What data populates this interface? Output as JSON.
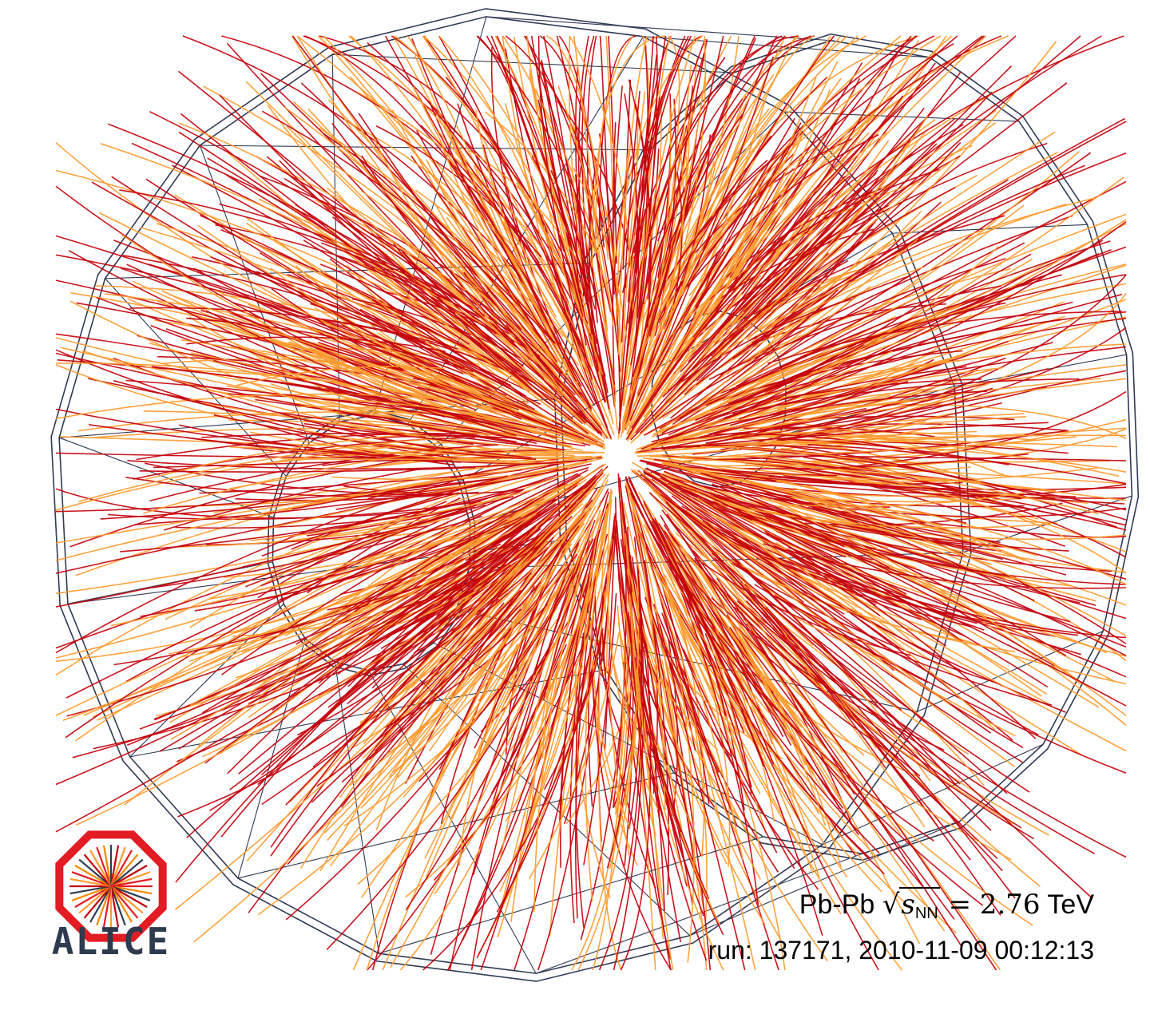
{
  "image": {
    "subject": "particle-collision-event-display",
    "colors": {
      "background": "#ffffff",
      "detector_frame": "#2f3a55",
      "track_primary": "#c4000a",
      "track_secondary": "#ff9a2e",
      "logo_red": "#e31b23",
      "logo_text": "#2e3b4e"
    }
  },
  "logo": {
    "name": "ALICE",
    "icon": "alice-octagon-logo-icon"
  },
  "caption": {
    "collision": "Pb-Pb",
    "energy_symbol_base": "s",
    "energy_symbol_sub": "NN",
    "energy_equals": "= 2.76",
    "energy_unit": "TeV",
    "run_line": "run: 137171, 2010-11-09 00:12:13"
  }
}
